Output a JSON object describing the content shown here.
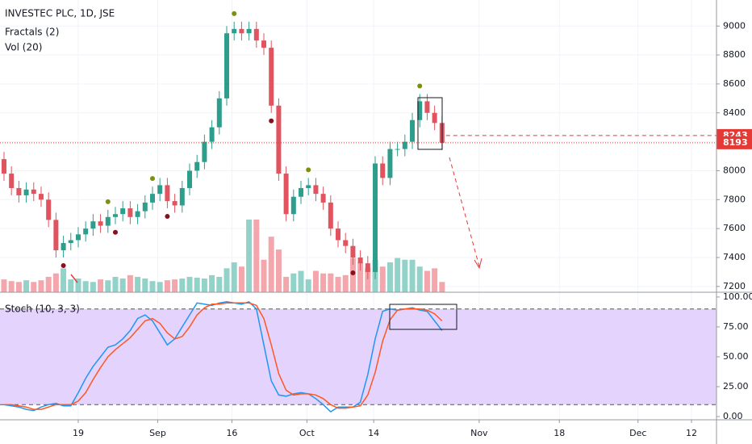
{
  "chart_data": [
    {
      "type": "candlestick",
      "title": "INVESTEC PLC, 1D, JSE",
      "indicators": [
        "Fractals (2)",
        "Vol (20)"
      ],
      "open": [
        8080,
        7980,
        7880,
        7830,
        7870,
        7840,
        7800,
        7660,
        7450,
        7500,
        7520,
        7560,
        7600,
        7650,
        7620,
        7680,
        7700,
        7740,
        7680,
        7720,
        7780,
        7840,
        7900,
        7790,
        7760,
        7880,
        8000,
        8060,
        8200,
        8300,
        8500,
        8950,
        8980,
        8950,
        8980,
        8900,
        8850,
        8450,
        7980,
        7700,
        7820,
        7880,
        7900,
        7840,
        7780,
        7600,
        7520,
        7480,
        7400,
        7360,
        7300,
        8050,
        7950,
        8150,
        8150,
        8200,
        8350,
        8480,
        8400,
        8330
      ],
      "high": [
        8130,
        8030,
        7930,
        7920,
        7920,
        7890,
        7850,
        7710,
        7550,
        7570,
        7610,
        7650,
        7700,
        7700,
        7730,
        7750,
        7790,
        7790,
        7770,
        7830,
        7890,
        7950,
        7950,
        7840,
        7930,
        8050,
        8110,
        8250,
        8350,
        8550,
        9000,
        9030,
        9030,
        9030,
        9030,
        8950,
        8900,
        8500,
        8030,
        7870,
        7930,
        7950,
        7950,
        7890,
        7830,
        7650,
        7570,
        7530,
        7450,
        7410,
        8100,
        8100,
        8200,
        8200,
        8250,
        8400,
        8530,
        8530,
        8450,
        8380
      ],
      "low": [
        7930,
        7830,
        7780,
        7780,
        7790,
        7750,
        7610,
        7400,
        7400,
        7450,
        7470,
        7510,
        7550,
        7570,
        7570,
        7630,
        7650,
        7630,
        7630,
        7670,
        7730,
        7790,
        7740,
        7710,
        7710,
        7830,
        7950,
        8010,
        8150,
        8250,
        8450,
        8900,
        8900,
        8900,
        8850,
        8800,
        8400,
        7930,
        7650,
        7650,
        7770,
        7830,
        7790,
        7730,
        7550,
        7470,
        7430,
        7350,
        7310,
        7250,
        7250,
        7900,
        7900,
        8100,
        8100,
        8150,
        8300,
        8350,
        8280,
        8143
      ],
      "close": [
        7980,
        7880,
        7830,
        7870,
        7840,
        7800,
        7660,
        7450,
        7500,
        7520,
        7560,
        7600,
        7650,
        7620,
        7680,
        7700,
        7740,
        7680,
        7720,
        7780,
        7840,
        7900,
        7790,
        7760,
        7880,
        8000,
        8060,
        8200,
        8300,
        8500,
        8950,
        8980,
        8950,
        8980,
        8900,
        8850,
        8450,
        7980,
        7700,
        7820,
        7880,
        7900,
        7840,
        7780,
        7600,
        7520,
        7480,
        7400,
        7360,
        7300,
        8050,
        7950,
        8150,
        8150,
        8200,
        8350,
        8480,
        8400,
        8330,
        8193
      ],
      "volume": [
        15,
        13,
        12,
        14,
        12,
        14,
        18,
        22,
        28,
        15,
        16,
        13,
        12,
        15,
        14,
        18,
        16,
        20,
        18,
        16,
        13,
        12,
        14,
        15,
        16,
        18,
        17,
        16,
        20,
        18,
        28,
        35,
        30,
        85,
        85,
        38,
        65,
        50,
        18,
        22,
        25,
        15,
        25,
        22,
        22,
        18,
        20,
        40,
        35,
        28,
        38,
        30,
        35,
        40,
        38,
        38,
        30,
        25,
        28,
        12
      ],
      "up_color": "#2e9e8c",
      "down_color": "#e0535f",
      "up_volume_color": "#93d2c9",
      "down_volume_color": "#f3a6ab",
      "fractals_up": [
        14,
        20,
        31,
        41,
        56
      ],
      "fractals_down": [
        8,
        15,
        22,
        36,
        47
      ],
      "fractal_up_color": "#7e8f0e",
      "fractal_down_color": "#8b0e1c",
      "price_lines": [
        8243,
        8193
      ],
      "price_line_color": "#e53935",
      "xlim": [
        -0.54,
        95.97
      ],
      "xticks": [
        {
          "value": 10,
          "label": "19"
        },
        {
          "value": 20.7,
          "label": "Sep"
        },
        {
          "value": 30.7,
          "label": "16"
        },
        {
          "value": 40.8,
          "label": "Oct"
        },
        {
          "value": 49.8,
          "label": "14"
        },
        {
          "value": 64,
          "label": "Nov"
        },
        {
          "value": 74.8,
          "label": "18"
        },
        {
          "value": 85.4,
          "label": "Dec"
        },
        {
          "value": 92.6,
          "label": "12"
        }
      ],
      "ylim": [
        7160,
        9180
      ],
      "yticks": [
        7200,
        7400,
        7600,
        7800,
        8000,
        8200,
        8400,
        8600,
        8800,
        9000
      ],
      "grid": true
    },
    {
      "type": "line",
      "title": "Stoch (10, 3, 3)",
      "series": [
        {
          "color": "#2196f3",
          "values": [
            10,
            9,
            8,
            6,
            5,
            8,
            10,
            11,
            9,
            9,
            20,
            32,
            42,
            50,
            58,
            60,
            65,
            72,
            82,
            85,
            80,
            70,
            60,
            65,
            75,
            85,
            95,
            94,
            93,
            95,
            96,
            95,
            94,
            96,
            90,
            60,
            30,
            18,
            17,
            19,
            20,
            19,
            15,
            10,
            4,
            8,
            8,
            8,
            12,
            35,
            65,
            88,
            90,
            89,
            90,
            91,
            89,
            88,
            80,
            72
          ]
        },
        {
          "color": "#ff5722",
          "values": [
            10,
            10,
            9,
            8,
            6,
            6,
            8,
            10,
            10,
            10,
            13,
            20,
            31,
            41,
            50,
            56,
            61,
            66,
            73,
            80,
            82,
            78,
            70,
            65,
            67,
            75,
            85,
            91,
            94,
            94,
            95,
            95,
            95,
            95,
            93,
            82,
            60,
            36,
            22,
            18,
            19,
            19,
            18,
            15,
            10,
            7,
            7,
            8,
            9,
            18,
            37,
            63,
            81,
            89,
            90,
            90,
            90,
            89,
            86,
            80
          ]
        }
      ],
      "bands": [
        90,
        10
      ],
      "band_color": "#e4d3fc",
      "xlim": [
        -0.54,
        95.97
      ],
      "ylim": [
        -2.7,
        104
      ],
      "yticks": [
        {
          "value": 0,
          "label": "0.00"
        },
        {
          "value": 25,
          "label": "25.00"
        },
        {
          "value": 50,
          "label": "50.00"
        },
        {
          "value": 75,
          "label": "75.00"
        },
        {
          "value": 100,
          "label": "100.00"
        }
      ]
    }
  ]
}
